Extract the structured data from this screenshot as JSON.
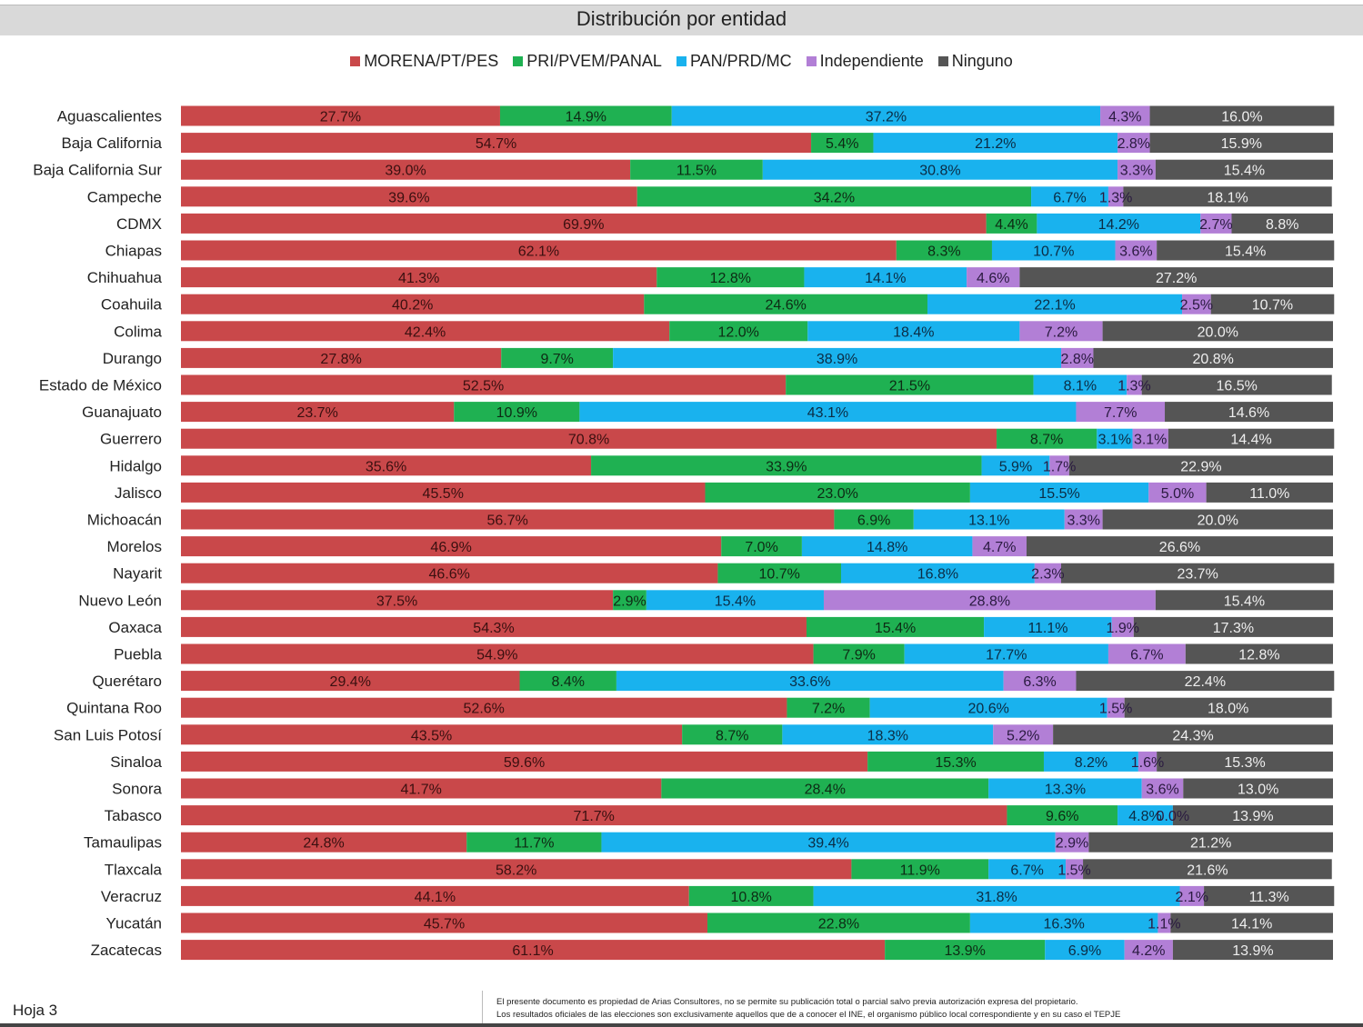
{
  "chart_data": {
    "type": "bar",
    "orientation": "horizontal-stacked-100",
    "title": "Distribución por entidad",
    "legend_position": "top",
    "series_names": [
      "MORENA/PT/PES",
      "PRI/PVEM/PANAL",
      "PAN/PRD/MC",
      "Independiente",
      "Ninguno"
    ],
    "colors": [
      "#c9484a",
      "#1fb152",
      "#19b2ee",
      "#b27fd6",
      "#555555"
    ],
    "label_colors": [
      "#3a1010",
      "#0d2a14",
      "#0b2c44",
      "#2a1a40",
      "#eeeeee"
    ],
    "categories": [
      "Aguascalientes",
      "Baja California",
      "Baja California Sur",
      "Campeche",
      "CDMX",
      "Chiapas",
      "Chihuahua",
      "Coahuila",
      "Colima",
      "Durango",
      "Estado de México",
      "Guanajuato",
      "Guerrero",
      "Hidalgo",
      "Jalisco",
      "Michoacán",
      "Morelos",
      "Nayarit",
      "Nuevo León",
      "Oaxaca",
      "Puebla",
      "Querétaro",
      "Quintana Roo",
      "San Luis Potosí",
      "Sinaloa",
      "Sonora",
      "Tabasco",
      "Tamaulipas",
      "Tlaxcala",
      "Veracruz",
      "Yucatán",
      "Zacatecas"
    ],
    "values": [
      [
        27.7,
        14.9,
        37.2,
        4.3,
        16.0
      ],
      [
        54.7,
        5.4,
        21.2,
        2.8,
        15.9
      ],
      [
        39.0,
        11.5,
        30.8,
        3.3,
        15.4
      ],
      [
        39.6,
        34.2,
        6.7,
        1.3,
        18.1
      ],
      [
        69.9,
        4.4,
        14.2,
        2.7,
        8.8
      ],
      [
        62.1,
        8.3,
        10.7,
        3.6,
        15.4
      ],
      [
        41.3,
        12.8,
        14.1,
        4.6,
        27.2
      ],
      [
        40.2,
        24.6,
        22.1,
        2.5,
        10.7
      ],
      [
        42.4,
        12.0,
        18.4,
        7.2,
        20.0
      ],
      [
        27.8,
        9.7,
        38.9,
        2.8,
        20.8
      ],
      [
        52.5,
        21.5,
        8.1,
        1.3,
        16.5
      ],
      [
        23.7,
        10.9,
        43.1,
        7.7,
        14.6
      ],
      [
        70.8,
        8.7,
        3.1,
        3.1,
        14.4
      ],
      [
        35.6,
        33.9,
        5.9,
        1.7,
        22.9
      ],
      [
        45.5,
        23.0,
        15.5,
        5.0,
        11.0
      ],
      [
        56.7,
        6.9,
        13.1,
        3.3,
        20.0
      ],
      [
        46.9,
        7.0,
        14.8,
        4.7,
        26.6
      ],
      [
        46.6,
        10.7,
        16.8,
        2.3,
        23.7
      ],
      [
        37.5,
        2.9,
        15.4,
        28.8,
        15.4
      ],
      [
        54.3,
        15.4,
        11.1,
        1.9,
        17.3
      ],
      [
        54.9,
        7.9,
        17.7,
        6.7,
        12.8
      ],
      [
        29.4,
        8.4,
        33.6,
        6.3,
        22.4
      ],
      [
        52.6,
        7.2,
        20.6,
        1.5,
        18.0
      ],
      [
        43.5,
        8.7,
        18.3,
        5.2,
        24.3
      ],
      [
        59.6,
        15.3,
        8.2,
        1.6,
        15.3
      ],
      [
        41.7,
        28.4,
        13.3,
        3.6,
        13.0
      ],
      [
        71.7,
        9.6,
        4.8,
        0.0,
        13.9
      ],
      [
        24.8,
        11.7,
        39.4,
        2.9,
        21.2
      ],
      [
        58.2,
        11.9,
        6.7,
        1.5,
        21.6
      ],
      [
        44.1,
        10.8,
        31.8,
        2.1,
        11.3
      ],
      [
        45.7,
        22.8,
        16.3,
        1.1,
        14.1
      ],
      [
        61.1,
        13.9,
        6.9,
        4.2,
        13.9
      ]
    ],
    "xlim": [
      0,
      100
    ]
  },
  "footer": {
    "page": "Hoja 3",
    "note_1": "El presente documento es propiedad de Arias Consultores, no se permite su publicación total o parcial salvo previa autorización expresa del propietario.",
    "note_2": "Los resultados oficiales de las elecciones son exclusivamente aquellos que de a conocer el INE, el organismo público local correspondiente y en su caso el TEPJE"
  }
}
